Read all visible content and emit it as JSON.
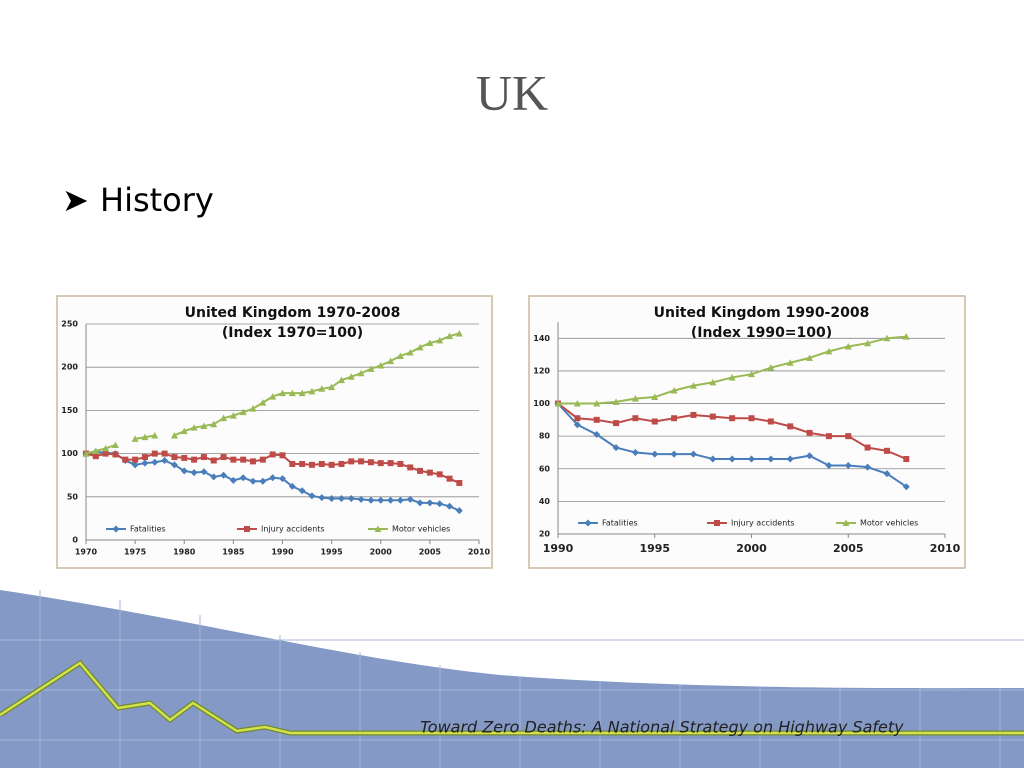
{
  "slide": {
    "title": "UK",
    "bullet": "History",
    "footer": "Toward Zero Deaths: A National Strategy on Highway Safety"
  },
  "chart_data": [
    {
      "type": "line",
      "title": "United Kingdom 1970-2008",
      "subtitle": "(Index 1970=100)",
      "x": [
        1970,
        1971,
        1972,
        1973,
        1974,
        1975,
        1976,
        1977,
        1978,
        1979,
        1980,
        1981,
        1982,
        1983,
        1984,
        1985,
        1986,
        1987,
        1988,
        1989,
        1990,
        1991,
        1992,
        1993,
        1994,
        1995,
        1996,
        1997,
        1998,
        1999,
        2000,
        2001,
        2002,
        2003,
        2004,
        2005,
        2006,
        2007,
        2008
      ],
      "series": [
        {
          "name": "Fatalities",
          "color": "#4a7ebb",
          "marker": "diamond",
          "values": [
            100,
            102,
            101,
            100,
            92,
            87,
            89,
            90,
            92,
            87,
            80,
            78,
            79,
            73,
            75,
            69,
            72,
            68,
            68,
            72,
            71,
            62,
            57,
            51,
            49,
            48,
            48,
            48,
            47,
            46,
            46,
            46,
            46,
            47,
            43,
            43,
            42,
            39,
            34
          ]
        },
        {
          "name": "Injury accidents",
          "color": "#be4b48",
          "marker": "square",
          "values": [
            100,
            97,
            100,
            99,
            93,
            93,
            96,
            100,
            100,
            96,
            95,
            93,
            96,
            92,
            96,
            93,
            93,
            91,
            93,
            99,
            98,
            88,
            88,
            87,
            88,
            87,
            88,
            91,
            91,
            90,
            89,
            89,
            88,
            84,
            80,
            78,
            76,
            71,
            66
          ]
        },
        {
          "name": "Motor vehicles",
          "color": "#98b954",
          "marker": "triangle",
          "values": [
            100,
            103,
            106,
            110,
            null,
            117,
            119,
            121,
            null,
            121,
            126,
            130,
            132,
            134,
            141,
            144,
            148,
            152,
            159,
            166,
            170,
            170,
            170,
            172,
            175,
            177,
            185,
            189,
            193,
            198,
            202,
            207,
            213,
            217,
            223,
            228,
            231,
            236,
            239
          ]
        }
      ],
      "xlim": [
        1970,
        2010
      ],
      "xticks": [
        1970,
        1975,
        1980,
        1985,
        1990,
        1995,
        2000,
        2005,
        2010
      ],
      "ylim": [
        0,
        250
      ],
      "yticks": [
        0,
        50,
        100,
        150,
        200,
        250
      ],
      "grid": true,
      "legend": "bottom"
    },
    {
      "type": "line",
      "title": "United Kingdom 1990-2008",
      "subtitle": "(Index 1990=100)",
      "x": [
        1990,
        1991,
        1992,
        1993,
        1994,
        1995,
        1996,
        1997,
        1998,
        1999,
        2000,
        2001,
        2002,
        2003,
        2004,
        2005,
        2006,
        2007,
        2008
      ],
      "series": [
        {
          "name": "Fatalities",
          "color": "#4a7ebb",
          "marker": "diamond",
          "values": [
            100,
            87,
            81,
            73,
            70,
            69,
            69,
            69,
            66,
            66,
            66,
            66,
            66,
            68,
            62,
            62,
            61,
            57,
            49
          ]
        },
        {
          "name": "Injury accidents",
          "color": "#be4b48",
          "marker": "square",
          "values": [
            100,
            91,
            90,
            88,
            91,
            89,
            91,
            93,
            92,
            91,
            91,
            89,
            86,
            82,
            80,
            80,
            73,
            71,
            66
          ]
        },
        {
          "name": "Motor vehicles",
          "color": "#98b954",
          "marker": "triangle",
          "values": [
            100,
            100,
            100,
            101,
            103,
            104,
            108,
            111,
            113,
            116,
            118,
            122,
            125,
            128,
            132,
            135,
            137,
            140,
            141
          ]
        }
      ],
      "xlim": [
        1990,
        2010
      ],
      "xticks": [
        1990,
        1995,
        2000,
        2005,
        2010
      ],
      "ylim": [
        20,
        150
      ],
      "yticks": [
        20,
        40,
        60,
        80,
        100,
        120,
        140
      ],
      "grid": true,
      "legend": "bottom"
    }
  ]
}
